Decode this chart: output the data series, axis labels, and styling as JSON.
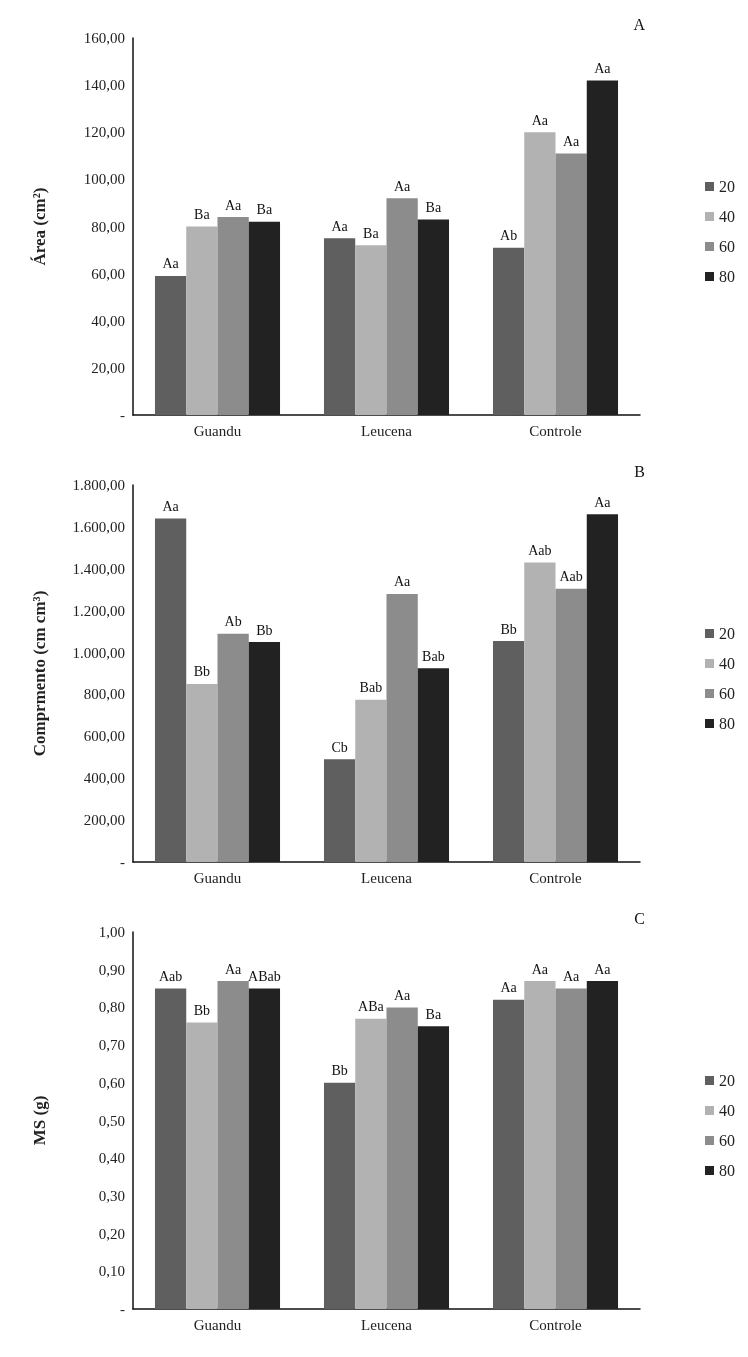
{
  "chart_data": [
    {
      "type": "bar",
      "ylabel": "Área (cm²)",
      "annotations": [
        "A"
      ],
      "categories": [
        "Guandu",
        "Leucena",
        "Controle"
      ],
      "legend": "right",
      "grid": false,
      "ylim": [
        0,
        160
      ],
      "yticks": [
        {
          "value": 0,
          "label": "-"
        },
        {
          "value": 20,
          "label": "20,00"
        },
        {
          "value": 40,
          "label": "40,00"
        },
        {
          "value": 60,
          "label": "60,00"
        },
        {
          "value": 80,
          "label": "80,00"
        },
        {
          "value": 100,
          "label": "100,00"
        },
        {
          "value": 120,
          "label": "120,00"
        },
        {
          "value": 140,
          "label": "140,00"
        },
        {
          "value": 160,
          "label": "160,00"
        }
      ],
      "series": [
        {
          "name": "20",
          "color": "#5f5f5f",
          "values": [
            59,
            75,
            71
          ],
          "value_labels": [
            "Aa",
            "Aa",
            "Ab"
          ]
        },
        {
          "name": "40",
          "color": "#b2b2b2",
          "values": [
            80,
            72,
            120
          ],
          "value_labels": [
            "Ba",
            "Ba",
            "Aa"
          ]
        },
        {
          "name": "60",
          "color": "#8c8c8c",
          "values": [
            84,
            92,
            111
          ],
          "value_labels": [
            "Aa",
            "Aa",
            "Aa"
          ]
        },
        {
          "name": "80",
          "color": "#222222",
          "values": [
            82,
            83,
            142
          ],
          "value_labels": [
            "Ba",
            "Ba",
            "Aa"
          ]
        }
      ]
    },
    {
      "type": "bar",
      "ylabel": "Comprmento (cm cm³)",
      "annotations": [
        "B"
      ],
      "categories": [
        "Guandu",
        "Leucena",
        "Controle"
      ],
      "legend": "right",
      "grid": false,
      "ylim": [
        0,
        1800
      ],
      "yticks": [
        {
          "value": 0,
          "label": "-"
        },
        {
          "value": 200,
          "label": "200,00"
        },
        {
          "value": 400,
          "label": "400,00"
        },
        {
          "value": 600,
          "label": "600,00"
        },
        {
          "value": 800,
          "label": "800,00"
        },
        {
          "value": 1000,
          "label": "1.000,00"
        },
        {
          "value": 1200,
          "label": "1.200,00"
        },
        {
          "value": 1400,
          "label": "1.400,00"
        },
        {
          "value": 1600,
          "label": "1.600,00"
        },
        {
          "value": 1800,
          "label": "1.800,00"
        }
      ],
      "series": [
        {
          "name": "20",
          "color": "#5f5f5f",
          "values": [
            1640,
            490,
            1055
          ],
          "value_labels": [
            "Aa",
            "Cb",
            "Bb"
          ]
        },
        {
          "name": "40",
          "color": "#b2b2b2",
          "values": [
            850,
            775,
            1430
          ],
          "value_labels": [
            "Bb",
            "Bab",
            "Aab"
          ]
        },
        {
          "name": "60",
          "color": "#8c8c8c",
          "values": [
            1090,
            1280,
            1305
          ],
          "value_labels": [
            "Ab",
            "Aa",
            "Aab"
          ]
        },
        {
          "name": "80",
          "color": "#222222",
          "values": [
            1050,
            925,
            1660
          ],
          "value_labels": [
            "Bb",
            "Bab",
            "Aa"
          ]
        }
      ]
    },
    {
      "type": "bar",
      "ylabel": "MS (g)",
      "annotations": [
        "C"
      ],
      "categories": [
        "Guandu",
        "Leucena",
        "Controle"
      ],
      "legend": "right",
      "grid": false,
      "ylim": [
        0,
        1
      ],
      "yticks": [
        {
          "value": 0,
          "label": "-"
        },
        {
          "value": 0.1,
          "label": "0,10"
        },
        {
          "value": 0.2,
          "label": "0,20"
        },
        {
          "value": 0.3,
          "label": "0,30"
        },
        {
          "value": 0.4,
          "label": "0,40"
        },
        {
          "value": 0.5,
          "label": "0,50"
        },
        {
          "value": 0.6,
          "label": "0,60"
        },
        {
          "value": 0.7,
          "label": "0,70"
        },
        {
          "value": 0.8,
          "label": "0,80"
        },
        {
          "value": 0.9,
          "label": "0,90"
        },
        {
          "value": 1,
          "label": "1,00"
        }
      ],
      "series": [
        {
          "name": "20",
          "color": "#5f5f5f",
          "values": [
            0.85,
            0.6,
            0.82
          ],
          "value_labels": [
            "Aab",
            "Bb",
            "Aa"
          ]
        },
        {
          "name": "40",
          "color": "#b2b2b2",
          "values": [
            0.76,
            0.77,
            0.87
          ],
          "value_labels": [
            "Bb",
            "ABa",
            "Aa"
          ]
        },
        {
          "name": "60",
          "color": "#8c8c8c",
          "values": [
            0.87,
            0.8,
            0.85
          ],
          "value_labels": [
            "Aa",
            "Aa",
            "Aa"
          ]
        },
        {
          "name": "80",
          "color": "#222222",
          "values": [
            0.85,
            0.75,
            0.87
          ],
          "value_labels": [
            "ABab",
            "Ba",
            "Aa"
          ]
        }
      ]
    }
  ]
}
